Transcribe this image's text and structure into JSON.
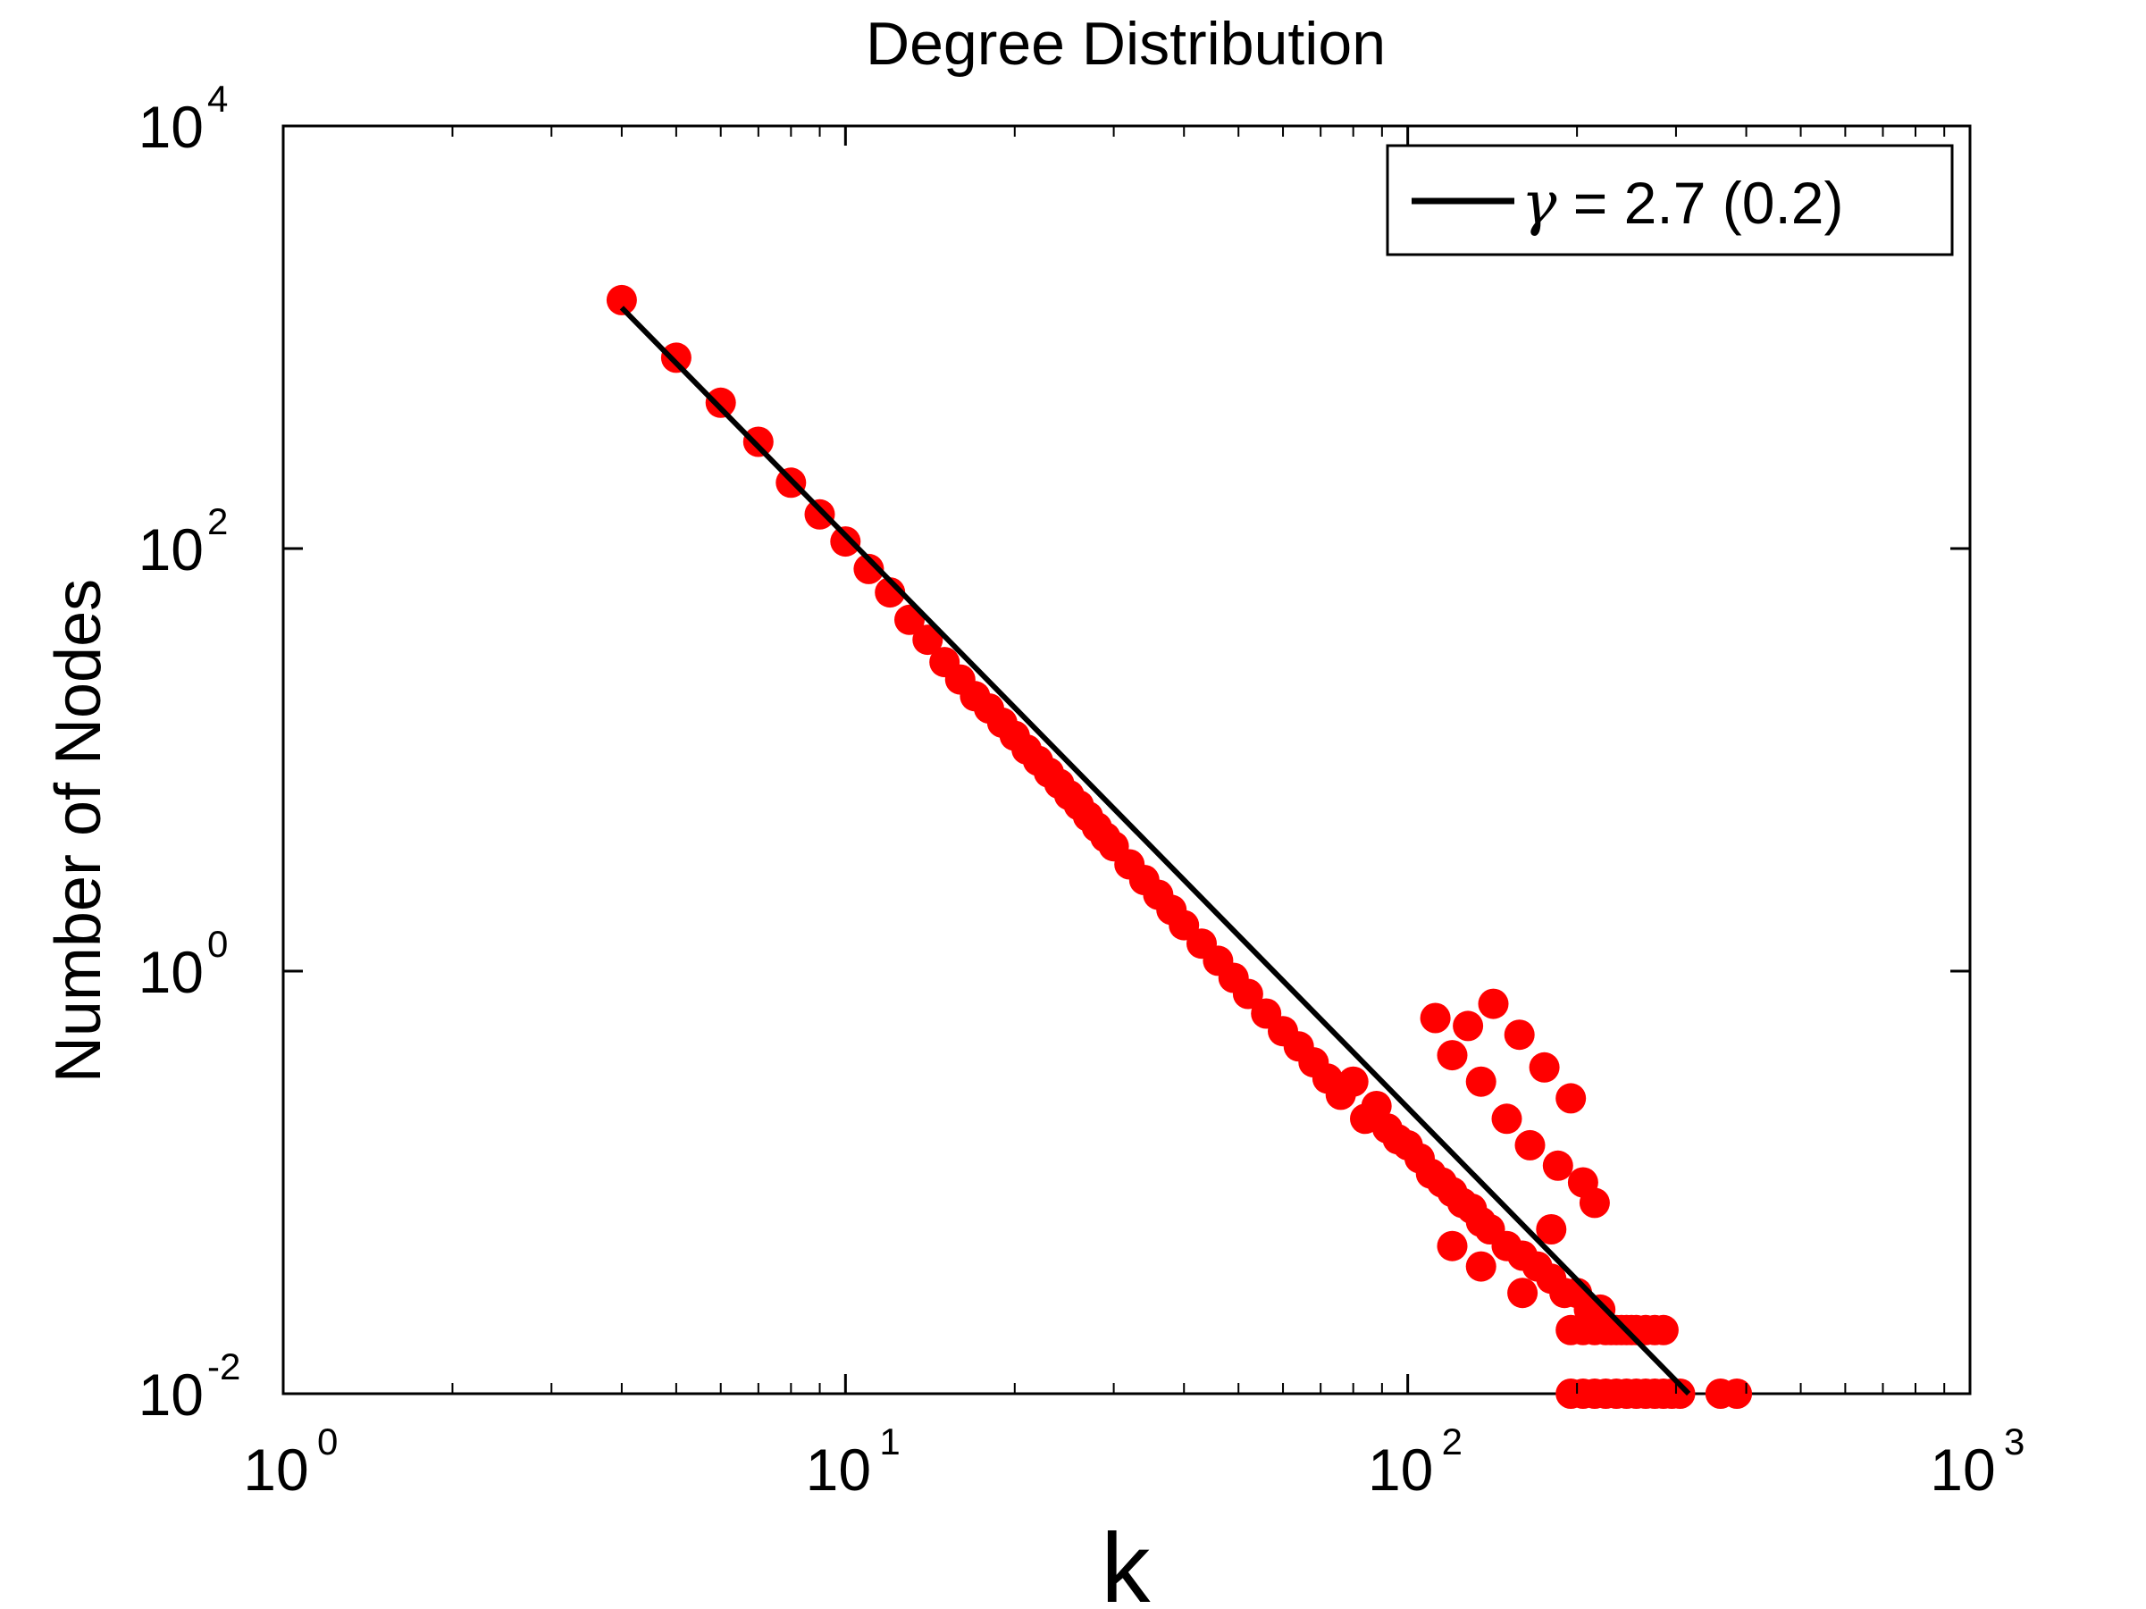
{
  "chart_data": {
    "type": "scatter",
    "title": "Degree Distribution",
    "xlabel": "k",
    "ylabel": "Number of Nodes",
    "xscale": "log",
    "yscale": "log",
    "xlim": [
      1,
      1000
    ],
    "ylim": [
      0.01,
      10000
    ],
    "x_ticks": [
      {
        "base": "10",
        "exp": "0"
      },
      {
        "base": "10",
        "exp": "1"
      },
      {
        "base": "10",
        "exp": "2"
      },
      {
        "base": "10",
        "exp": "3"
      }
    ],
    "y_ticks": [
      {
        "base": "10",
        "exp": "-2"
      },
      {
        "base": "10",
        "exp": "0"
      },
      {
        "base": "10",
        "exp": "2"
      },
      {
        "base": "10",
        "exp": "4"
      }
    ],
    "grid": false,
    "legend_position": "top-right",
    "legend": {
      "line_label_symbol": "γ",
      "line_label_rest": " = 2.7 (0.2)"
    },
    "fit_line": {
      "name": "γ = 2.7 (0.2)",
      "color": "#000000",
      "x": [
        4,
        316
      ],
      "y": [
        1380,
        0.01
      ]
    },
    "series": [
      {
        "marker_color": "#ff0000",
        "points": [
          [
            4,
            1500
          ],
          [
            5,
            800
          ],
          [
            6,
            490
          ],
          [
            7,
            320
          ],
          [
            8,
            205
          ],
          [
            9,
            145
          ],
          [
            10,
            108
          ],
          [
            11,
            80
          ],
          [
            12,
            62
          ],
          [
            13,
            46
          ],
          [
            14,
            37
          ],
          [
            15,
            29
          ],
          [
            16,
            24
          ],
          [
            17,
            20
          ],
          [
            18,
            17.5
          ],
          [
            19,
            15
          ],
          [
            20,
            13
          ],
          [
            21,
            11.2
          ],
          [
            22,
            9.9
          ],
          [
            23,
            8.7
          ],
          [
            24,
            7.7
          ],
          [
            25,
            6.8
          ],
          [
            26,
            6.1
          ],
          [
            27,
            5.4
          ],
          [
            28,
            4.8
          ],
          [
            29,
            4.3
          ],
          [
            30,
            3.9
          ],
          [
            32,
            3.2
          ],
          [
            34,
            2.7
          ],
          [
            36,
            2.3
          ],
          [
            38,
            1.95
          ],
          [
            40,
            1.65
          ],
          [
            43,
            1.35
          ],
          [
            46,
            1.12
          ],
          [
            49,
            0.93
          ],
          [
            52,
            0.78
          ],
          [
            56,
            0.63
          ],
          [
            60,
            0.52
          ],
          [
            64,
            0.44
          ],
          [
            68,
            0.37
          ],
          [
            72,
            0.31
          ],
          [
            76,
            0.26
          ],
          [
            80,
            0.3
          ],
          [
            84,
            0.2
          ],
          [
            88,
            0.23
          ],
          [
            92,
            0.18
          ],
          [
            96,
            0.16
          ],
          [
            100,
            0.15
          ],
          [
            105,
            0.13
          ],
          [
            110,
            0.11
          ],
          [
            115,
            0.1
          ],
          [
            120,
            0.09
          ],
          [
            125,
            0.08
          ],
          [
            130,
            0.075
          ],
          [
            135,
            0.065
          ],
          [
            140,
            0.06
          ],
          [
            150,
            0.05
          ],
          [
            160,
            0.045
          ],
          [
            170,
            0.04
          ],
          [
            180,
            0.035
          ],
          [
            190,
            0.03
          ],
          [
            200,
            0.03
          ],
          [
            210,
            0.025
          ],
          [
            220,
            0.025
          ],
          [
            230,
            0.02
          ],
          [
            240,
            0.02
          ],
          [
            250,
            0.02
          ],
          [
            112,
            0.6
          ],
          [
            120,
            0.4
          ],
          [
            128,
            0.55
          ],
          [
            135,
            0.3
          ],
          [
            142,
            0.7
          ],
          [
            150,
            0.2
          ],
          [
            158,
            0.5
          ],
          [
            165,
            0.15
          ],
          [
            175,
            0.35
          ],
          [
            185,
            0.12
          ],
          [
            195,
            0.25
          ],
          [
            205,
            0.1
          ],
          [
            215,
            0.08
          ],
          [
            120,
            0.05
          ],
          [
            135,
            0.04
          ],
          [
            160,
            0.03
          ],
          [
            180,
            0.06
          ],
          [
            195,
            0.02
          ],
          [
            205,
            0.02
          ],
          [
            215,
            0.02
          ],
          [
            225,
            0.02
          ],
          [
            235,
            0.02
          ],
          [
            245,
            0.02
          ],
          [
            255,
            0.02
          ],
          [
            265,
            0.02
          ],
          [
            275,
            0.02
          ],
          [
            285,
            0.02
          ],
          [
            195,
            0.01
          ],
          [
            205,
            0.01
          ],
          [
            215,
            0.01
          ],
          [
            225,
            0.01
          ],
          [
            235,
            0.01
          ],
          [
            245,
            0.01
          ],
          [
            255,
            0.01
          ],
          [
            265,
            0.01
          ],
          [
            275,
            0.01
          ],
          [
            285,
            0.01
          ],
          [
            295,
            0.01
          ],
          [
            305,
            0.01
          ],
          [
            360,
            0.01
          ],
          [
            385,
            0.01
          ]
        ]
      }
    ]
  }
}
